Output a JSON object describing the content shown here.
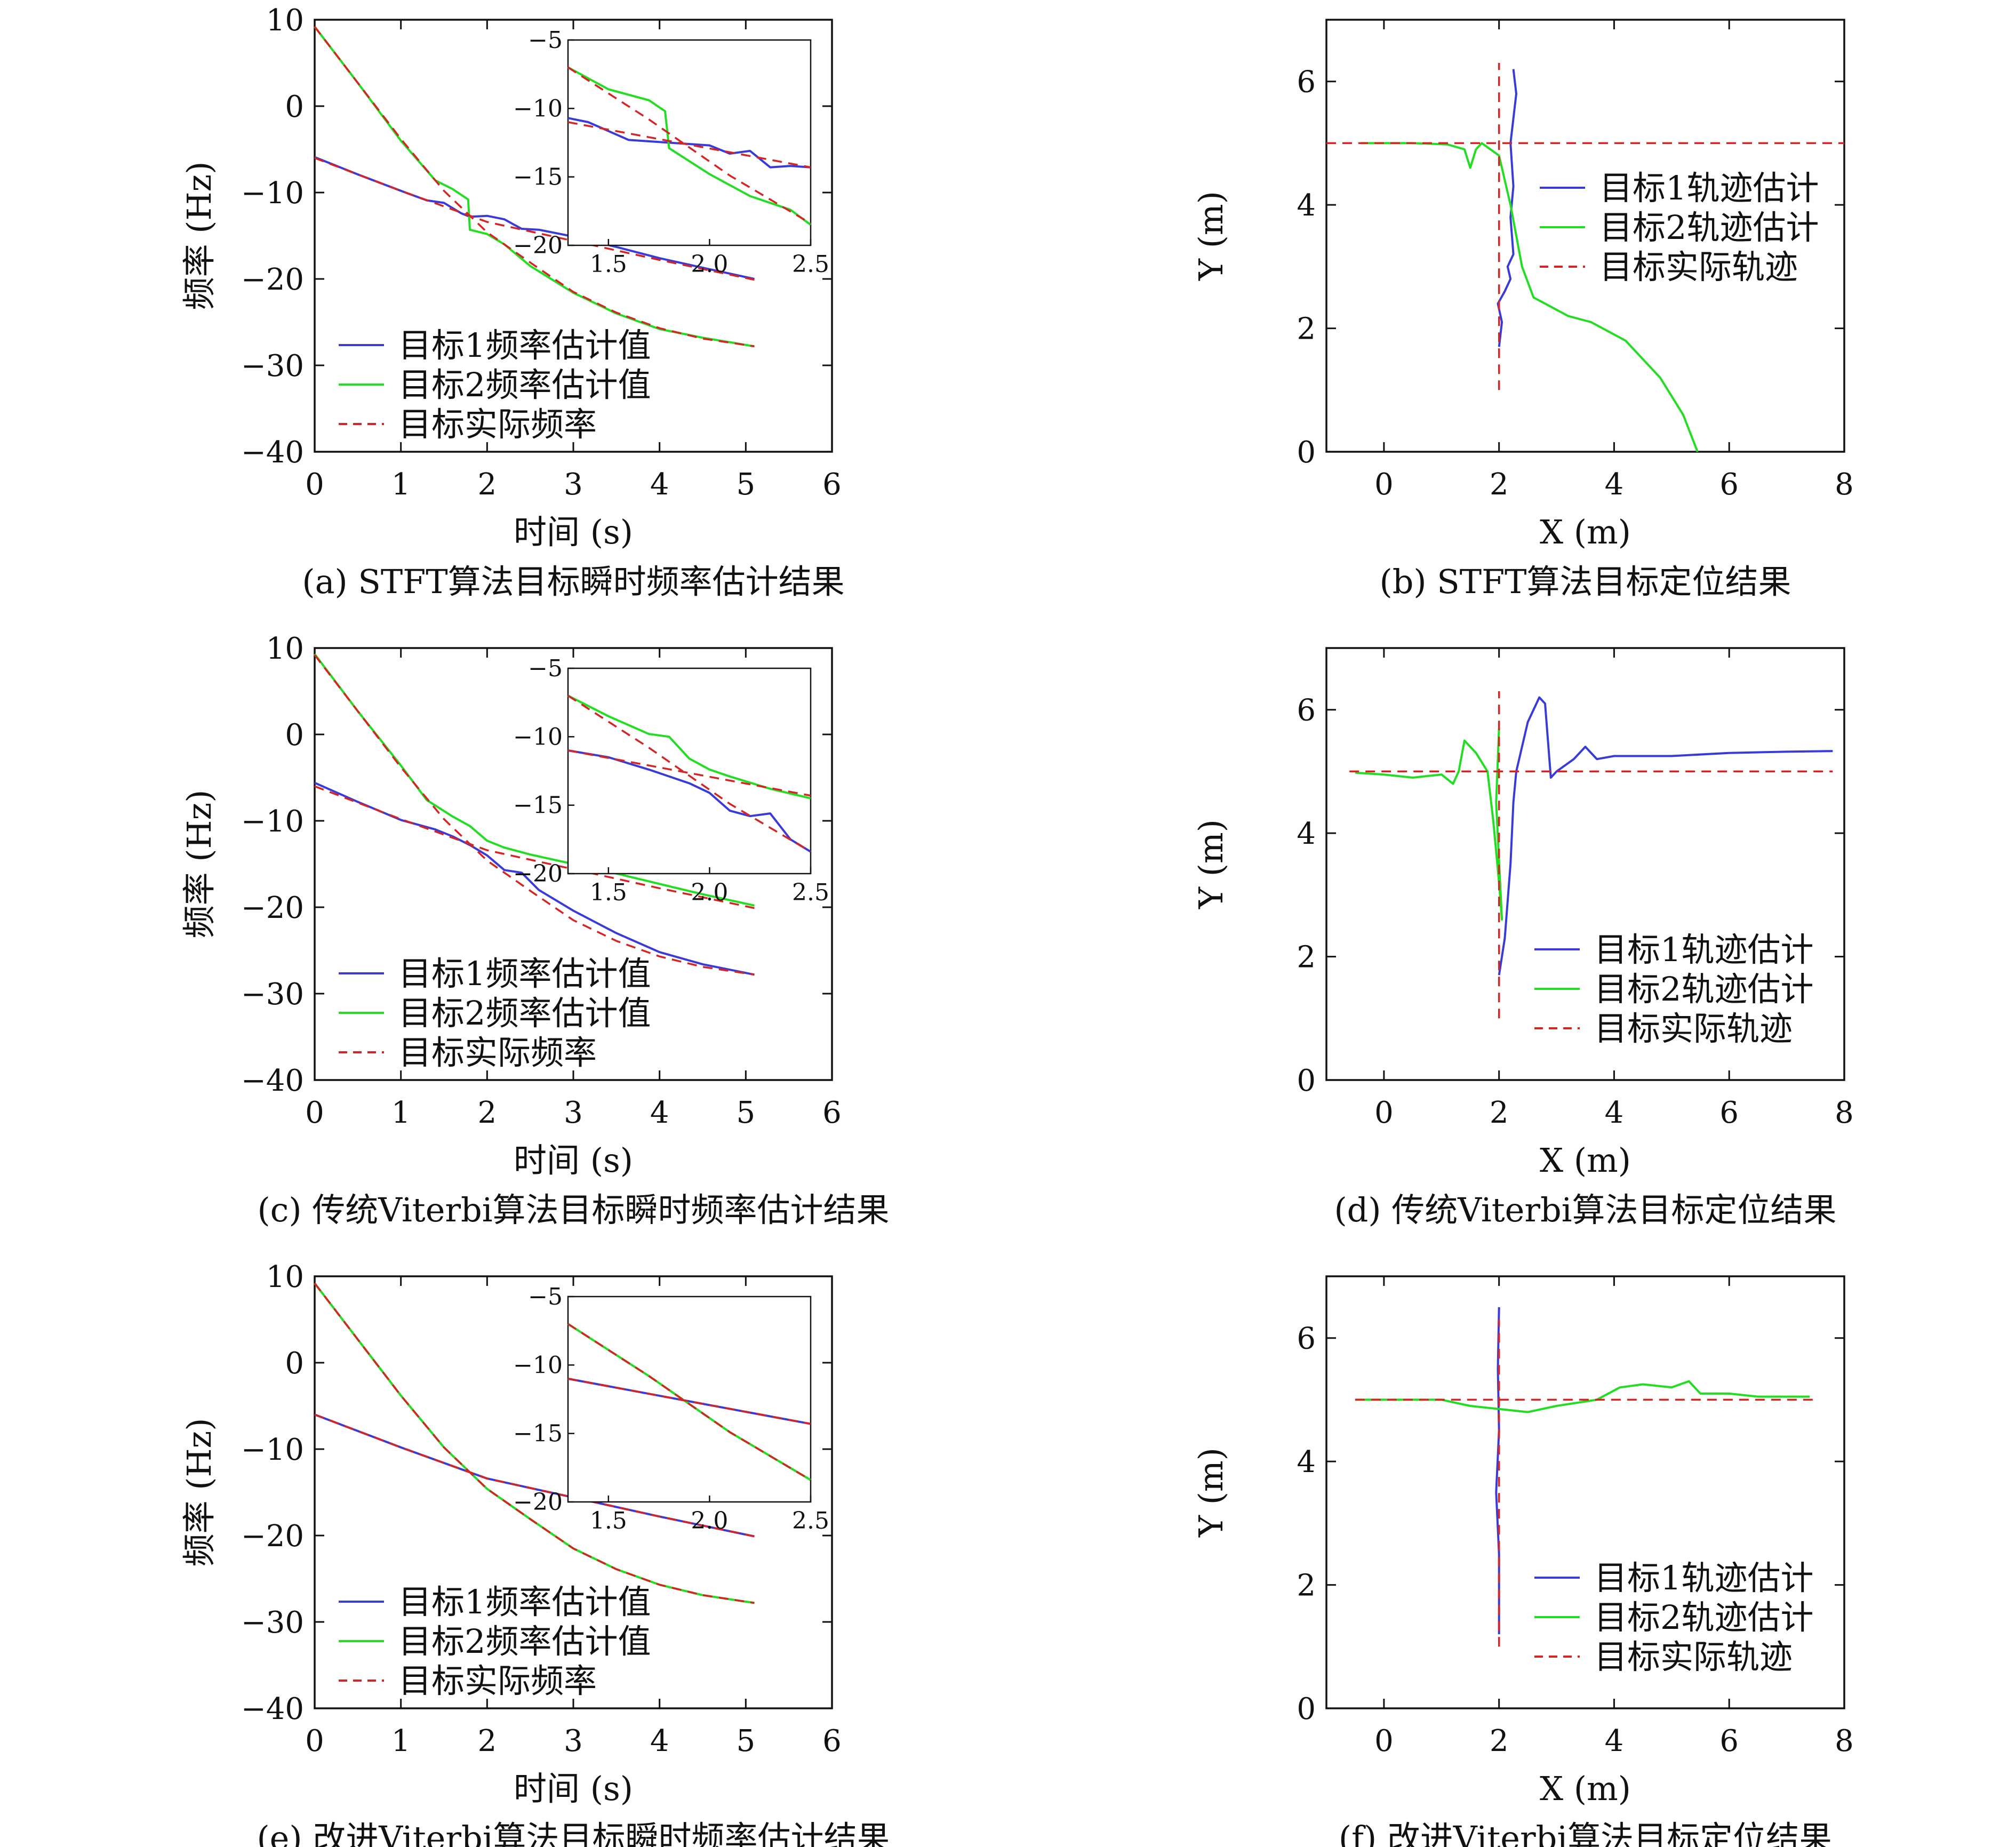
{
  "colors": {
    "target1": "#3a3ad8",
    "target2": "#22dd22",
    "actual": "#d42424",
    "axis": "#111111"
  },
  "chart_data": [
    {
      "id": "a",
      "type": "line",
      "caption": "(a) STFT算法目标瞬时频率估计结果",
      "xlabel": "时间 (s)",
      "ylabel": "频率 (Hz)",
      "xlim": [
        0,
        6
      ],
      "ylim": [
        -40,
        10
      ],
      "xticks": [
        "0",
        "1",
        "2",
        "3",
        "4",
        "5",
        "6"
      ],
      "yticks": [
        "10",
        "0",
        "−10",
        "−20",
        "−30",
        "−40"
      ],
      "legend": [
        "目标1频率估计值",
        "目标2频率估计值",
        "目标实际频率"
      ],
      "legend_position": "bottom-left",
      "series": [
        {
          "name": "目标1频率估计值",
          "role": "t1",
          "x": [
            0,
            0.5,
            1,
            1.3,
            1.5,
            1.7,
            1.8,
            2.0,
            2.2,
            2.4,
            2.6,
            3.0,
            3.5,
            4.0,
            4.5,
            5.1
          ],
          "y": [
            -5.9,
            -7.9,
            -9.8,
            -10.9,
            -11.2,
            -12.4,
            -12.8,
            -12.7,
            -13.1,
            -14.2,
            -14.3,
            -15.1,
            -16.3,
            -17.6,
            -18.7,
            -20
          ]
        },
        {
          "name": "目标2频率估计值",
          "role": "t2",
          "x": [
            0,
            0.5,
            1,
            1.4,
            1.6,
            1.78,
            1.8,
            2.0,
            2.2,
            2.5,
            3.0,
            3.5,
            4.0,
            4.5,
            5.1
          ],
          "y": [
            9.2,
            2.7,
            -4,
            -8.6,
            -9.6,
            -10.8,
            -14.3,
            -14.8,
            -16,
            -18.5,
            -21.6,
            -24,
            -25.8,
            -26.8,
            -27.8
          ]
        },
        {
          "name": "目标实际频率",
          "role": "actual_t1",
          "dashed": true,
          "x": [
            0,
            1,
            2,
            3,
            4,
            5.1
          ],
          "y": [
            -6,
            -9.8,
            -13.4,
            -15.6,
            -17.8,
            -20.1
          ]
        },
        {
          "name": "目标实际频率",
          "role": "actual_t2",
          "dashed": true,
          "x": [
            0,
            0.5,
            1,
            1.5,
            2.0,
            2.5,
            3,
            3.5,
            4,
            4.5,
            5.1
          ],
          "y": [
            9.2,
            2.7,
            -3.8,
            -9.8,
            -14.6,
            -18.1,
            -21.5,
            -23.9,
            -25.7,
            -26.9,
            -27.8
          ]
        }
      ],
      "inset": {
        "xlim": [
          1.3,
          2.5
        ],
        "ylim": [
          -20,
          -5
        ],
        "xticks": [
          "1.5",
          "2.0",
          "2.5"
        ],
        "yticks": [
          "−5",
          "−10",
          "−15",
          "−20"
        ],
        "series": [
          {
            "role": "t1",
            "x": [
              1.3,
              1.4,
              1.6,
              1.8,
              2.0,
              2.1,
              2.2,
              2.3,
              2.4,
              2.5
            ],
            "y": [
              -10.7,
              -11,
              -12.3,
              -12.5,
              -12.7,
              -13.3,
              -13.1,
              -14.3,
              -14.2,
              -14.3
            ]
          },
          {
            "role": "t2",
            "x": [
              1.3,
              1.5,
              1.7,
              1.78,
              1.8,
              2.0,
              2.2,
              2.4,
              2.5
            ],
            "y": [
              -7,
              -8.6,
              -9.4,
              -10.2,
              -12.9,
              -14.8,
              -16.4,
              -17.4,
              -18.5
            ]
          },
          {
            "role": "actual_t1",
            "dashed": true,
            "x": [
              1.3,
              2.5
            ],
            "y": [
              -11,
              -14.3
            ]
          },
          {
            "role": "actual_t2",
            "dashed": true,
            "x": [
              1.3,
              1.7,
              2.1,
              2.5
            ],
            "y": [
              -7,
              -10.8,
              -14.9,
              -18.4
            ]
          }
        ]
      }
    },
    {
      "id": "b",
      "type": "line",
      "caption": "(b) STFT算法目标定位结果",
      "xlabel": "X (m)",
      "ylabel": "Y (m)",
      "xlim": [
        -1,
        8
      ],
      "ylim": [
        0,
        7
      ],
      "xticks": [
        "0",
        "2",
        "4",
        "6",
        "8"
      ],
      "yticks": [
        "0",
        "2",
        "4",
        "6"
      ],
      "legend": [
        "目标1轨迹估计",
        "目标2轨迹估计",
        "目标实际轨迹"
      ],
      "legend_position": "center-right",
      "series": [
        {
          "name": "目标1轨迹估计",
          "role": "t1",
          "x": [
            2.0,
            2.05,
            1.98,
            2.1,
            2.2,
            2.15,
            2.25,
            2.2,
            2.25,
            2.2,
            2.3,
            2.25
          ],
          "y": [
            1.7,
            2.1,
            2.4,
            2.6,
            2.8,
            3.0,
            3.2,
            3.8,
            4.3,
            5.0,
            5.8,
            6.2
          ]
        },
        {
          "name": "目标2轨迹估计",
          "role": "t2",
          "x": [
            -0.4,
            0.5,
            1.1,
            1.4,
            1.5,
            1.6,
            1.7,
            2.0,
            2.2,
            2.4,
            2.6,
            2.8,
            3.2,
            3.6,
            4.2,
            4.8,
            5.2,
            5.45
          ],
          "y": [
            5.0,
            5.0,
            4.98,
            4.9,
            4.6,
            4.9,
            5.0,
            4.8,
            4.0,
            3.0,
            2.5,
            2.4,
            2.2,
            2.1,
            1.8,
            1.2,
            0.6,
            0
          ]
        },
        {
          "name": "目标实际轨迹",
          "role": "actual_t1",
          "dashed": true,
          "x": [
            -1,
            8
          ],
          "y": [
            5,
            5
          ]
        },
        {
          "name": "目标实际轨迹",
          "role": "actual_t2",
          "dashed": true,
          "x": [
            2,
            2
          ],
          "y": [
            1,
            6.3
          ]
        }
      ]
    },
    {
      "id": "c",
      "type": "line",
      "caption": "(c) 传统Viterbi算法目标瞬时频率估计结果",
      "xlabel": "时间 (s)",
      "ylabel": "频率 (Hz)",
      "xlim": [
        0,
        6
      ],
      "ylim": [
        -40,
        10
      ],
      "xticks": [
        "0",
        "1",
        "2",
        "3",
        "4",
        "5",
        "6"
      ],
      "yticks": [
        "10",
        "0",
        "−10",
        "−20",
        "−30",
        "−40"
      ],
      "legend": [
        "目标1频率估计值",
        "目标2频率估计值",
        "目标实际频率"
      ],
      "legend_position": "bottom-left",
      "series": [
        {
          "name": "目标1频率估计值",
          "role": "t1",
          "x": [
            0,
            0.5,
            1,
            1.4,
            1.6,
            1.8,
            2.0,
            2.2,
            2.4,
            2.6,
            3.0,
            3.5,
            4.0,
            4.5,
            5.1
          ],
          "y": [
            -5.6,
            -7.8,
            -9.9,
            -11,
            -11.8,
            -12.8,
            -14,
            -15.7,
            -16,
            -18,
            -20.4,
            -23,
            -25.2,
            -26.6,
            -27.8
          ]
        },
        {
          "name": "目标2频率估计值",
          "role": "t2",
          "x": [
            0,
            0.5,
            1,
            1.3,
            1.6,
            1.8,
            2.0,
            2.2,
            2.5,
            3.0,
            3.5,
            4.0,
            4.5,
            5.1
          ],
          "y": [
            9.3,
            2.7,
            -3.6,
            -7.6,
            -9.5,
            -10.6,
            -12.3,
            -13.1,
            -13.9,
            -15,
            -16.1,
            -17.3,
            -18.5,
            -19.8
          ]
        },
        {
          "name": "目标实际频率",
          "role": "actual_t1",
          "dashed": true,
          "x": [
            0,
            1,
            2,
            3,
            4,
            5.1
          ],
          "y": [
            -6,
            -9.8,
            -13.4,
            -15.6,
            -17.8,
            -20.1
          ]
        },
        {
          "name": "目标实际频率",
          "role": "actual_t2",
          "dashed": true,
          "x": [
            0,
            0.5,
            1,
            1.5,
            2.0,
            2.5,
            3,
            3.5,
            4,
            4.5,
            5.1
          ],
          "y": [
            9.2,
            2.7,
            -3.8,
            -9.8,
            -14.6,
            -18.1,
            -21.5,
            -23.9,
            -25.7,
            -26.9,
            -27.8
          ]
        }
      ],
      "inset": {
        "xlim": [
          1.3,
          2.5
        ],
        "ylim": [
          -20,
          -5
        ],
        "xticks": [
          "1.5",
          "2.0",
          "2.5"
        ],
        "yticks": [
          "−5",
          "−10",
          "−15",
          "−20"
        ],
        "series": [
          {
            "role": "t1",
            "x": [
              1.3,
              1.5,
              1.7,
              1.9,
              2.0,
              2.1,
              2.2,
              2.3,
              2.4,
              2.5
            ],
            "y": [
              -11,
              -11.5,
              -12.4,
              -13.4,
              -14.1,
              -15.4,
              -15.8,
              -15.6,
              -17.5,
              -18.4
            ]
          },
          {
            "role": "t2",
            "x": [
              1.3,
              1.5,
              1.7,
              1.8,
              1.9,
              2.0,
              2.1,
              2.3,
              2.5
            ],
            "y": [
              -7,
              -8.5,
              -9.8,
              -10,
              -11.6,
              -12.4,
              -12.9,
              -13.8,
              -14.5
            ]
          },
          {
            "role": "actual_t1",
            "dashed": true,
            "x": [
              1.3,
              2.5
            ],
            "y": [
              -11,
              -14.3
            ]
          },
          {
            "role": "actual_t2",
            "dashed": true,
            "x": [
              1.3,
              1.7,
              2.1,
              2.5
            ],
            "y": [
              -7,
              -10.8,
              -14.9,
              -18.4
            ]
          }
        ]
      }
    },
    {
      "id": "d",
      "type": "line",
      "caption": "(d) 传统Viterbi算法目标定位结果",
      "xlabel": "X (m)",
      "ylabel": "Y (m)",
      "xlim": [
        -1,
        8
      ],
      "ylim": [
        0,
        7
      ],
      "xticks": [
        "0",
        "2",
        "4",
        "6",
        "8"
      ],
      "yticks": [
        "0",
        "2",
        "4",
        "6"
      ],
      "legend": [
        "目标1轨迹估计",
        "目标2轨迹估计",
        "目标实际轨迹"
      ],
      "legend_position": "bottom-right",
      "series": [
        {
          "name": "目标1轨迹估计",
          "role": "t1",
          "x": [
            2.0,
            2.1,
            2.2,
            2.25,
            2.3,
            2.5,
            2.7,
            2.8,
            2.9,
            3.0,
            3.3,
            3.5,
            3.7,
            4,
            5,
            6,
            7,
            7.8
          ],
          "y": [
            1.7,
            2.3,
            3.5,
            4.5,
            5.0,
            5.8,
            6.2,
            6.1,
            4.9,
            5.0,
            5.2,
            5.4,
            5.2,
            5.25,
            5.25,
            5.3,
            5.32,
            5.33
          ]
        },
        {
          "name": "目标2轨迹估计",
          "role": "t2",
          "x": [
            -0.5,
            0,
            0.5,
            1.0,
            1.2,
            1.3,
            1.4,
            1.6,
            1.8,
            1.9,
            2.0,
            2.05,
            1.95,
            2.0
          ],
          "y": [
            4.98,
            4.95,
            4.9,
            4.95,
            4.8,
            5.0,
            5.5,
            5.3,
            5.0,
            4.2,
            3.2,
            2.6,
            4.5,
            5.7
          ]
        },
        {
          "name": "目标实际轨迹",
          "role": "actual_t1",
          "dashed": true,
          "x": [
            -0.6,
            7.8
          ],
          "y": [
            5,
            5
          ]
        },
        {
          "name": "目标实际轨迹",
          "role": "actual_t2",
          "dashed": true,
          "x": [
            2,
            2
          ],
          "y": [
            1,
            6.3
          ]
        }
      ]
    },
    {
      "id": "e",
      "type": "line",
      "caption": "(e) 改进Viterbi算法目标瞬时频率估计结果",
      "xlabel": "时间 (s)",
      "ylabel": "频率 (Hz)",
      "xlim": [
        0,
        6
      ],
      "ylim": [
        -40,
        10
      ],
      "xticks": [
        "0",
        "1",
        "2",
        "3",
        "4",
        "5",
        "6"
      ],
      "yticks": [
        "10",
        "0",
        "−10",
        "−20",
        "−30",
        "−40"
      ],
      "legend": [
        "目标1频率估计值",
        "目标2频率估计值",
        "目标实际频率"
      ],
      "legend_position": "bottom-left",
      "series": [
        {
          "name": "目标1频率估计值",
          "role": "t1",
          "x": [
            0,
            1,
            2,
            3,
            4,
            5.1
          ],
          "y": [
            -6,
            -9.8,
            -13.4,
            -15.6,
            -17.8,
            -20.1
          ]
        },
        {
          "name": "目标2频率估计值",
          "role": "t2",
          "x": [
            0,
            0.5,
            1,
            1.5,
            2.0,
            2.5,
            3,
            3.5,
            4,
            4.5,
            5.1
          ],
          "y": [
            9.2,
            2.7,
            -3.8,
            -9.8,
            -14.6,
            -18.1,
            -21.5,
            -23.9,
            -25.7,
            -26.9,
            -27.8
          ]
        },
        {
          "name": "目标实际频率",
          "role": "actual_t1",
          "dashed": true,
          "x": [
            0,
            1,
            2,
            3,
            4,
            5.1
          ],
          "y": [
            -6,
            -9.8,
            -13.4,
            -15.6,
            -17.8,
            -20.1
          ]
        },
        {
          "name": "目标实际频率",
          "role": "actual_t2",
          "dashed": true,
          "x": [
            0,
            0.5,
            1,
            1.5,
            2.0,
            2.5,
            3,
            3.5,
            4,
            4.5,
            5.1
          ],
          "y": [
            9.2,
            2.7,
            -3.8,
            -9.8,
            -14.6,
            -18.1,
            -21.5,
            -23.9,
            -25.7,
            -26.9,
            -27.8
          ]
        }
      ],
      "inset": {
        "xlim": [
          1.3,
          2.5
        ],
        "ylim": [
          -20,
          -5
        ],
        "xticks": [
          "1.5",
          "2.0",
          "2.5"
        ],
        "yticks": [
          "−5",
          "−10",
          "−15",
          "−20"
        ],
        "series": [
          {
            "role": "t1",
            "x": [
              1.3,
              2.5
            ],
            "y": [
              -11,
              -14.3
            ]
          },
          {
            "role": "t2",
            "x": [
              1.3,
              1.7,
              2.1,
              2.5
            ],
            "y": [
              -7,
              -10.8,
              -14.9,
              -18.4
            ]
          },
          {
            "role": "actual_t1",
            "dashed": true,
            "x": [
              1.3,
              2.5
            ],
            "y": [
              -11,
              -14.3
            ]
          },
          {
            "role": "actual_t2",
            "dashed": true,
            "x": [
              1.3,
              1.7,
              2.1,
              2.5
            ],
            "y": [
              -7,
              -10.8,
              -14.9,
              -18.4
            ]
          }
        ]
      }
    },
    {
      "id": "f",
      "type": "line",
      "caption": "(f) 改进Viterbi算法目标定位结果",
      "xlabel": "X (m)",
      "ylabel": "Y (m)",
      "xlim": [
        -1,
        8
      ],
      "ylim": [
        0,
        7
      ],
      "xticks": [
        "0",
        "2",
        "4",
        "6",
        "8"
      ],
      "yticks": [
        "0",
        "2",
        "4",
        "6"
      ],
      "legend": [
        "目标1轨迹估计",
        "目标2轨迹估计",
        "目标实际轨迹"
      ],
      "legend_position": "bottom-right",
      "series": [
        {
          "name": "目标1轨迹估计",
          "role": "t1",
          "x": [
            2.0,
            2.0,
            1.95,
            2.0,
            1.98,
            2.0
          ],
          "y": [
            1.2,
            2.5,
            3.5,
            4.5,
            5.5,
            6.5
          ]
        },
        {
          "name": "目标2轨迹估计",
          "role": "t2",
          "x": [
            -0.5,
            1,
            1.5,
            2,
            2.5,
            3,
            3.7,
            4.1,
            4.5,
            5,
            5.3,
            5.5,
            6,
            6.5,
            7,
            7.4
          ],
          "y": [
            5.0,
            5.0,
            4.9,
            4.85,
            4.8,
            4.9,
            5.0,
            5.2,
            5.25,
            5.2,
            5.3,
            5.1,
            5.1,
            5.05,
            5.05,
            5.05
          ]
        },
        {
          "name": "目标实际轨迹",
          "role": "actual_t1",
          "dashed": true,
          "x": [
            -0.5,
            7.5
          ],
          "y": [
            5,
            5
          ]
        },
        {
          "name": "目标实际轨迹",
          "role": "actual_t2",
          "dashed": true,
          "x": [
            2,
            2
          ],
          "y": [
            1,
            6.3
          ]
        }
      ]
    }
  ]
}
